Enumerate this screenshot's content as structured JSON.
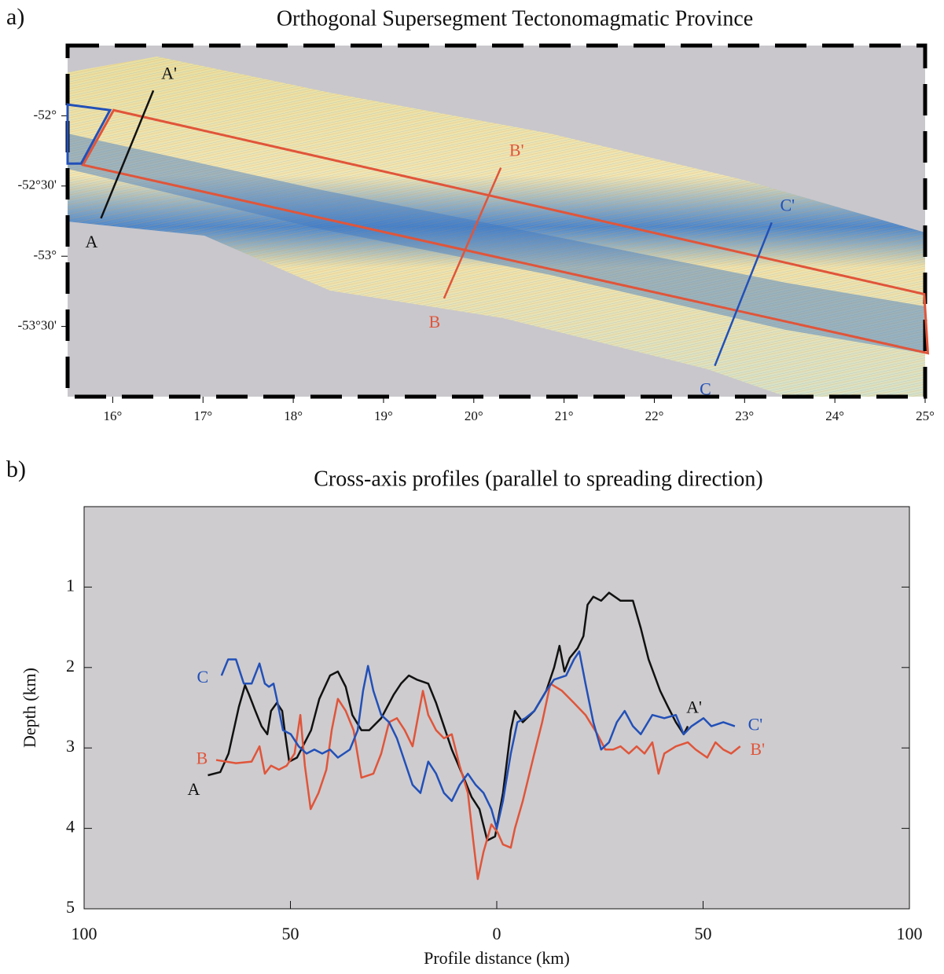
{
  "chart_data": [
    {
      "type": "map",
      "panel_label": "a)",
      "title": "Orthogonal Supersegment Tectonomagmatic Province",
      "xlim": [
        15.5,
        25
      ],
      "ylim": [
        -54,
        -51.5
      ],
      "xticks": [
        {
          "value": 16,
          "label": "16°"
        },
        {
          "value": 17,
          "label": "17°"
        },
        {
          "value": 18,
          "label": "18°"
        },
        {
          "value": 19,
          "label": "19°"
        },
        {
          "value": 20,
          "label": "20°"
        },
        {
          "value": 21,
          "label": "21°"
        },
        {
          "value": 22,
          "label": "22°"
        },
        {
          "value": 23,
          "label": "23°"
        },
        {
          "value": 24,
          "label": "24°"
        },
        {
          "value": 25,
          "label": "25°"
        }
      ],
      "yticks": [
        {
          "value": -52,
          "label": "-52°"
        },
        {
          "value": -52.5,
          "label": "-52°30'"
        },
        {
          "value": -53,
          "label": "-53°"
        },
        {
          "value": -53.5,
          "label": "-53°30'"
        }
      ],
      "profiles": [
        {
          "start_label": "A",
          "end_label": "A'",
          "color": "#111111",
          "lon": [
            15.87,
            16.45
          ],
          "lat": [
            -52.73,
            -51.82
          ]
        },
        {
          "start_label": "B",
          "end_label": "B'",
          "color": "#e0553a",
          "lon": [
            19.67,
            20.3
          ],
          "lat": [
            -53.3,
            -52.37
          ]
        },
        {
          "start_label": "C",
          "end_label": "C'",
          "color": "#2250b8",
          "lon": [
            22.67,
            23.3
          ],
          "lat": [
            -53.78,
            -52.76
          ]
        }
      ],
      "outlines": [
        {
          "color": "#e0553a",
          "lon": [
            15.67,
            16.01,
            24.99,
            25.03
          ],
          "lat": [
            -52.35,
            -51.96,
            -53.27,
            -53.69
          ]
        },
        {
          "color": "#2250b8",
          "lon": [
            15.5,
            15.97,
            15.65,
            15.5
          ],
          "lat": [
            -51.92,
            -51.96,
            -52.34,
            -52.34
          ]
        }
      ]
    },
    {
      "type": "line",
      "panel_label": "b)",
      "title": "Cross-axis profiles (parallel to spreading direction)",
      "x_label": "Profile distance (km)",
      "y_label": "Depth (km)",
      "xlim": [
        -100,
        100
      ],
      "ylim": [
        5,
        0
      ],
      "xticks": [
        {
          "value": -100,
          "label": "100"
        },
        {
          "value": -50,
          "label": "50"
        },
        0,
        50,
        100
      ],
      "yticks": [
        1,
        2,
        3,
        4,
        5
      ],
      "series": [
        {
          "start_label": "A",
          "end_label": "A'",
          "color": "#111111",
          "x": [
            -70,
            -67,
            -65,
            -62.5,
            -61,
            -60,
            -58.5,
            -57,
            -55.6,
            -54.7,
            -53.3,
            -52,
            -51.4,
            -50.3,
            -48.4,
            -47,
            -45,
            -43,
            -40.4,
            -38.5,
            -36.6,
            -35,
            -32.8,
            -30.9,
            -28,
            -25,
            -23.2,
            -21.3,
            -19.4,
            -16.6,
            -14.7,
            -12.8,
            -10.9,
            -8,
            -6.1,
            -4.2,
            -2.3,
            -0.4,
            1.5,
            3.4,
            4.4,
            6.3,
            9.1,
            12,
            13.9,
            15.2,
            16.4,
            17.7,
            19.6,
            21,
            22,
            23.4,
            25.3,
            27.2,
            30,
            33,
            34.9,
            36.8,
            39.6,
            41.5,
            43.4,
            45.3,
            46.3
          ],
          "values": [
            3.34,
            3.3,
            3.07,
            2.49,
            2.22,
            2.34,
            2.54,
            2.73,
            2.83,
            2.54,
            2.44,
            2.54,
            2.78,
            3.17,
            3.12,
            2.98,
            2.78,
            2.39,
            2.1,
            2.05,
            2.24,
            2.59,
            2.78,
            2.78,
            2.63,
            2.34,
            2.2,
            2.1,
            2.15,
            2.2,
            2.44,
            2.73,
            3.02,
            3.37,
            3.61,
            3.76,
            4.15,
            4.1,
            3.56,
            2.78,
            2.54,
            2.68,
            2.54,
            2.29,
            2.0,
            1.73,
            2.05,
            1.88,
            1.76,
            1.61,
            1.22,
            1.12,
            1.17,
            1.07,
            1.17,
            1.17,
            1.51,
            1.9,
            2.29,
            2.49,
            2.68,
            2.83,
            2.73
          ]
        },
        {
          "start_label": "B",
          "end_label": "B'",
          "color": "#e0553a",
          "x": [
            -68,
            -63.2,
            -59.4,
            -57.5,
            -56.2,
            -54.7,
            -52.8,
            -50.9,
            -49,
            -47.6,
            -46.5,
            -45.1,
            -43.2,
            -41.3,
            -40,
            -38.5,
            -36.6,
            -34.7,
            -32.8,
            -29.9,
            -28,
            -26.1,
            -24.2,
            -22.3,
            -20.4,
            -19,
            -17.9,
            -16.6,
            -14.7,
            -12.8,
            -10.9,
            -9,
            -7,
            -5.7,
            -4.6,
            -3.2,
            -1.3,
            0.2,
            1.5,
            3.4,
            4.4,
            6.3,
            9.1,
            11,
            13,
            15.8,
            18.7,
            21.5,
            24.4,
            26.3,
            28.2,
            30,
            32,
            33.9,
            35.8,
            37.7,
            39.2,
            40.6,
            43.4,
            46.3,
            48.2,
            51,
            53,
            54.9,
            56.8,
            59
          ],
          "values": [
            3.15,
            3.19,
            3.17,
            2.98,
            3.32,
            3.22,
            3.27,
            3.22,
            3.07,
            2.59,
            3.22,
            3.76,
            3.56,
            3.27,
            2.78,
            2.39,
            2.54,
            2.78,
            3.37,
            3.32,
            3.07,
            2.68,
            2.63,
            2.78,
            2.98,
            2.59,
            2.29,
            2.59,
            2.78,
            2.88,
            2.83,
            3.22,
            3.56,
            4.15,
            4.63,
            4.29,
            3.95,
            4.05,
            4.2,
            4.24,
            4.0,
            3.66,
            3.07,
            2.68,
            2.2,
            2.29,
            2.44,
            2.59,
            2.83,
            3.02,
            3.02,
            2.98,
            3.07,
            2.98,
            3.07,
            2.93,
            3.32,
            3.07,
            2.98,
            2.93,
            3.02,
            3.12,
            2.93,
            3.02,
            3.07,
            2.98
          ]
        },
        {
          "start_label": "C",
          "end_label": "C'",
          "color": "#2250b8",
          "x": [
            -66.7,
            -65.1,
            -63.2,
            -61.3,
            -59.4,
            -57.5,
            -56.2,
            -55.2,
            -54.1,
            -53.3,
            -51.8,
            -49.9,
            -48,
            -46.1,
            -44.2,
            -42.3,
            -40.4,
            -38.5,
            -35.6,
            -33.7,
            -32.4,
            -31.2,
            -29.9,
            -28,
            -26.1,
            -24.2,
            -22.3,
            -20.4,
            -18.5,
            -16.6,
            -14.7,
            -12.8,
            -10.9,
            -9,
            -7,
            -5.1,
            -3.2,
            -1.3,
            0,
            1.5,
            3.4,
            5,
            6.9,
            9.1,
            12,
            13.9,
            16.8,
            18.7,
            20,
            21.5,
            23.4,
            25.3,
            27.2,
            29.1,
            31,
            33,
            34.9,
            37.7,
            40.6,
            43.4,
            45.3,
            47.2,
            50.1,
            52,
            54.9,
            57.7
          ],
          "values": [
            2.1,
            1.9,
            1.9,
            2.2,
            2.2,
            1.95,
            2.2,
            2.24,
            2.2,
            2.39,
            2.78,
            2.83,
            2.98,
            3.07,
            3.02,
            3.07,
            3.02,
            3.12,
            3.02,
            2.78,
            2.29,
            1.98,
            2.29,
            2.59,
            2.68,
            2.88,
            3.17,
            3.46,
            3.56,
            3.17,
            3.32,
            3.56,
            3.66,
            3.46,
            3.32,
            3.46,
            3.56,
            3.76,
            4.0,
            3.66,
            3.07,
            2.68,
            2.63,
            2.54,
            2.29,
            2.15,
            2.1,
            1.9,
            1.8,
            2.2,
            2.68,
            3.02,
            2.93,
            2.68,
            2.54,
            2.73,
            2.83,
            2.59,
            2.63,
            2.59,
            2.83,
            2.73,
            2.63,
            2.73,
            2.68,
            2.73
          ]
        }
      ]
    }
  ]
}
